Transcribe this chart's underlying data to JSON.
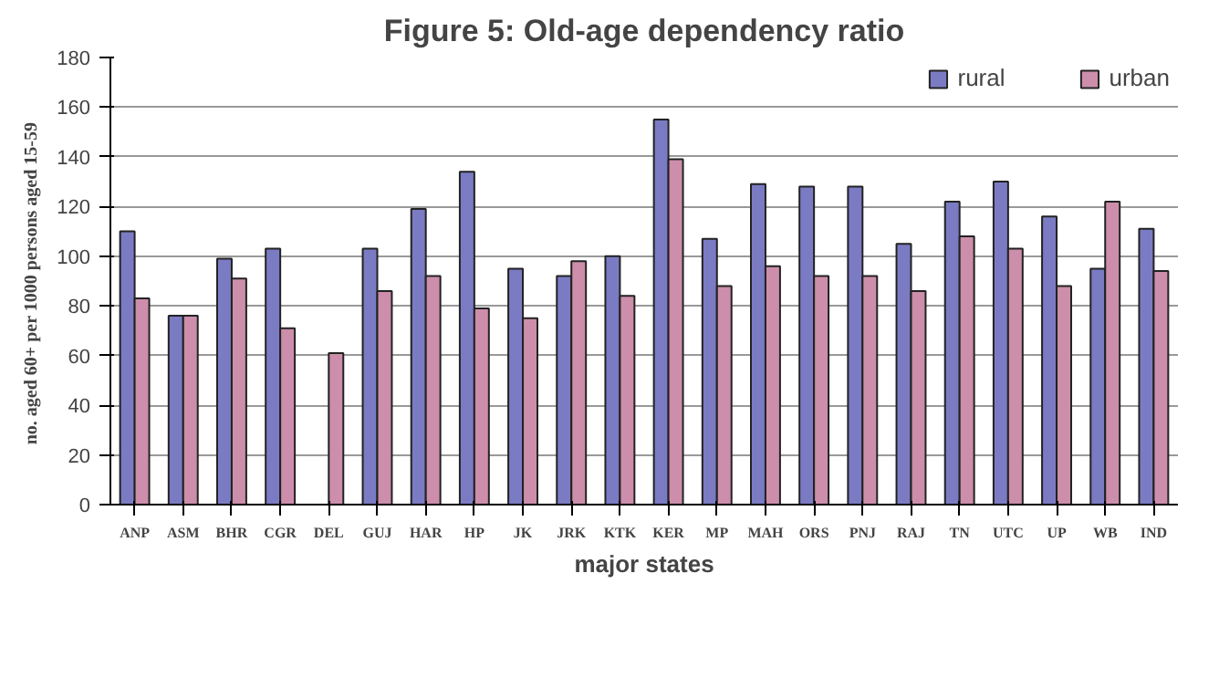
{
  "chart_data": {
    "type": "bar",
    "title": "Figure 5: Old-age dependency ratio",
    "xlabel": "major states",
    "ylabel": "no.  aged 60+ per 1000 persons aged 15-59",
    "categories": [
      "ANP",
      "ASM",
      "BHR",
      "CGR",
      "DEL",
      "GUJ",
      "HAR",
      "HP",
      "JK",
      "JRK",
      "KTK",
      "KER",
      "MP",
      "MAH",
      "ORS",
      "PNJ",
      "RAJ",
      "TN",
      "UTC",
      "UP",
      "WB",
      "IND"
    ],
    "series": [
      {
        "name": "rural",
        "color": "#7b7bc4",
        "values": [
          110,
          76,
          99,
          103,
          null,
          103,
          119,
          134,
          95,
          92,
          100,
          155,
          107,
          129,
          128,
          128,
          105,
          122,
          130,
          116,
          95,
          111
        ]
      },
      {
        "name": "urban",
        "color": "#cc8eaa",
        "values": [
          83,
          76,
          91,
          71,
          61,
          86,
          92,
          79,
          75,
          98,
          84,
          139,
          88,
          96,
          92,
          92,
          86,
          108,
          103,
          88,
          122,
          94
        ]
      }
    ],
    "ylim": [
      0,
      180
    ],
    "yticks": [
      0,
      20,
      40,
      60,
      80,
      100,
      120,
      140,
      160,
      180
    ],
    "grid": "y",
    "legend": "top right"
  }
}
